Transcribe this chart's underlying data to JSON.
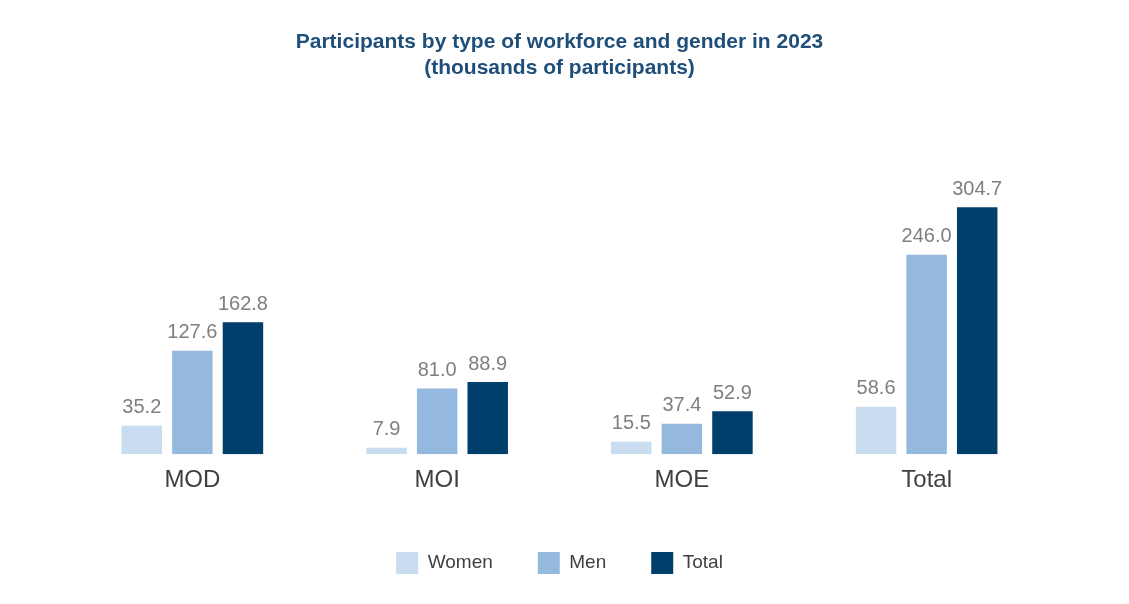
{
  "chart_data": {
    "type": "bar",
    "title": "Participants by type of workforce and gender in 2023\n(thousands of participants)",
    "categories": [
      "MOD",
      "MOI",
      "MOE",
      "Total"
    ],
    "series": [
      {
        "name": "Women",
        "color": "#c9dcf0",
        "values": [
          35.2,
          7.9,
          15.5,
          58.6
        ],
        "value_labels": [
          "35.2",
          "7.9",
          "15.5",
          "58.6"
        ]
      },
      {
        "name": "Men",
        "color": "#95b8df",
        "values": [
          127.6,
          81.0,
          37.4,
          246.0
        ],
        "value_labels": [
          "127.6",
          "81.0",
          "37.4",
          "246.0"
        ]
      },
      {
        "name": "Total",
        "color": "#003f6b",
        "values": [
          162.8,
          88.9,
          52.9,
          304.7
        ],
        "value_labels": [
          "162.8",
          "88.9",
          "52.9",
          "304.7"
        ]
      }
    ],
    "grid": false,
    "legend": "bottom"
  }
}
